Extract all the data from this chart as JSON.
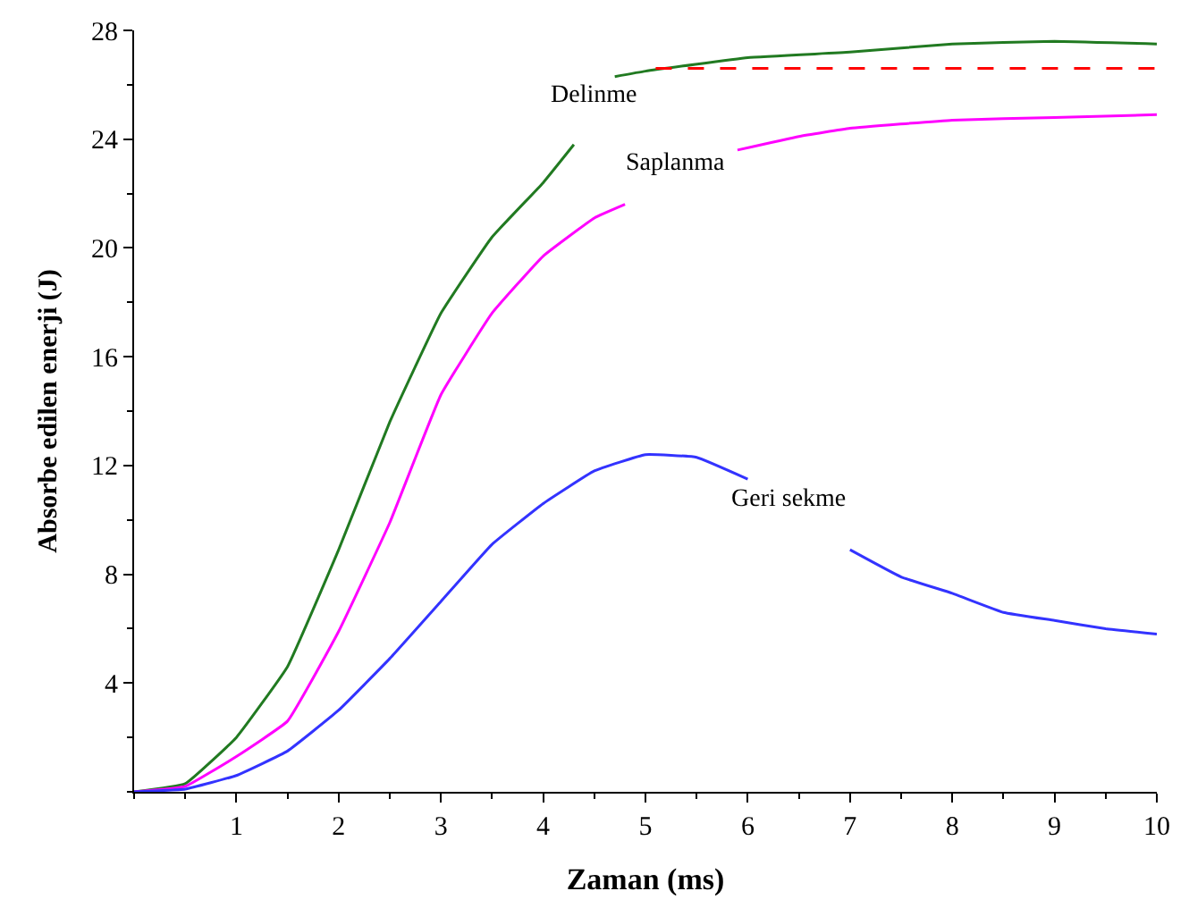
{
  "chart_data": {
    "type": "line",
    "xlabel": "Zaman (ms)",
    "ylabel": "Absorbe edilen enerji (J)",
    "xlim": [
      0,
      10
    ],
    "xticks": [
      1,
      2,
      3,
      4,
      5,
      6,
      7,
      8,
      9,
      10
    ],
    "ylim": [
      0,
      28
    ],
    "yticks": [
      4,
      8,
      12,
      16,
      20,
      24,
      28
    ],
    "legend": false,
    "marker": "none",
    "line_style": "solid",
    "series": [
      {
        "name": "Delinme",
        "color": "#217a21",
        "x": [
          0,
          0.5,
          1,
          1.5,
          2,
          2.5,
          3,
          3.5,
          4,
          4.3,
          4.5,
          4.7,
          5,
          6,
          7,
          8,
          9,
          10
        ],
        "values": [
          0,
          0.3,
          2.0,
          4.6,
          8.9,
          13.6,
          17.6,
          20.4,
          22.4,
          23.8,
          null,
          26.3,
          26.5,
          27.0,
          27.2,
          27.5,
          27.6,
          27.5
        ]
      },
      {
        "name": "Saplanma",
        "color": "#ff00ff",
        "x": [
          0,
          0.5,
          1,
          1.5,
          2,
          2.5,
          3,
          3.5,
          4,
          4.5,
          4.8,
          5.3,
          5.9,
          6.5,
          7,
          8,
          9,
          10
        ],
        "values": [
          0,
          0.2,
          1.3,
          2.6,
          5.9,
          9.9,
          14.6,
          17.6,
          19.7,
          21.1,
          21.6,
          null,
          23.6,
          24.1,
          24.4,
          24.7,
          24.8,
          24.9
        ]
      },
      {
        "name": "Geri sekme",
        "color": "#3333ff",
        "x": [
          0,
          0.5,
          1,
          1.5,
          2,
          2.5,
          3,
          3.5,
          4,
          4.5,
          5,
          5.5,
          6,
          6.4,
          7,
          7.5,
          8,
          8.5,
          9,
          9.5,
          10
        ],
        "values": [
          0,
          0.1,
          0.6,
          1.5,
          3.0,
          4.9,
          7.0,
          9.1,
          10.6,
          11.8,
          12.4,
          12.3,
          11.5,
          null,
          8.9,
          7.9,
          7.3,
          6.6,
          6.3,
          6.0,
          5.8
        ]
      },
      {
        "color": "#ff0000",
        "line_style": "dashed",
        "x": [
          5.1,
          10
        ],
        "values": [
          26.6,
          26.6
        ]
      }
    ]
  }
}
